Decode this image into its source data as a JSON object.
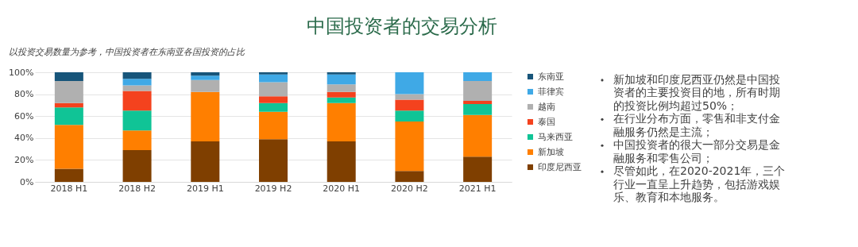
{
  "chart_data": [
    {
      "type": "bar",
      "title": "中国投资者的交易分析",
      "subtitle": "以投资交易数量为参考，中国投资者在东南亚各国投资的占比",
      "categories": [
        "2018 H1",
        "2018 H2",
        "2019 H1",
        "2019 H2",
        "2020 H1",
        "2020 H2",
        "2021 H1"
      ],
      "stacked": true,
      "series": [
        {
          "name": "印度尼西亚",
          "color": "#7f3f00",
          "values": [
            12,
            29,
            37,
            39,
            37,
            10,
            23
          ]
        },
        {
          "name": "新加坡",
          "color": "#ff7f00",
          "values": [
            40,
            18,
            45,
            25,
            35,
            45,
            38
          ]
        },
        {
          "name": "马来西亚",
          "color": "#10c496",
          "values": [
            16,
            18,
            0,
            8,
            5,
            10,
            10
          ]
        },
        {
          "name": "泰国",
          "color": "#f4421e",
          "values": [
            4,
            18,
            0,
            6,
            5,
            10,
            3
          ]
        },
        {
          "name": "越南",
          "color": "#b0b0b0",
          "values": [
            20,
            5,
            11,
            13,
            7,
            5,
            18
          ]
        },
        {
          "name": "菲律宾",
          "color": "#3fa9e6",
          "values": [
            0,
            6,
            4,
            7,
            9,
            20,
            8
          ]
        },
        {
          "name": "东南亚",
          "color": "#17557a",
          "values": [
            8,
            6,
            3,
            2,
            2,
            0,
            0
          ]
        }
      ],
      "ylim": [
        0,
        100
      ],
      "yticks": [
        {
          "value": 0,
          "label": "0%"
        },
        {
          "value": 20,
          "label": "20%"
        },
        {
          "value": 40,
          "label": "40%"
        },
        {
          "value": 60,
          "label": "60%"
        },
        {
          "value": 80,
          "label": "80%"
        },
        {
          "value": 100,
          "label": "100%"
        }
      ],
      "grid": "y",
      "legend": "right"
    },
    {
      "type": "other",
      "annotations": [
        "新加坡和印度尼西亚仍然是中国投资者的主要投资目的地，所有时期的投资比例均超过50%；",
        "在行业分布方面，零售和非支付金融服务仍然是主流；",
        "中国投资者的很大一部分交易是金融服务和零售公司；",
        "尽管如此，在2020-2021年，三个行业一直呈上升趋势，包括游戏娱乐、教育和本地服务。"
      ]
    }
  ]
}
